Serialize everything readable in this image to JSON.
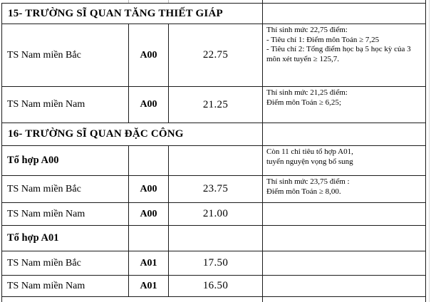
{
  "table": {
    "border_color": "#1c1c1c",
    "rows": [
      {
        "type": "section",
        "label": "15- TRƯỜNG SĨ QUAN TĂNG THIẾT GIÁP",
        "note": ""
      },
      {
        "type": "data",
        "label": "TS Nam miền Bắc",
        "combo": "A00",
        "score": "22.75",
        "note": "Thí sinh mức 22,75 điểm:\n- Tiêu chí 1: Điểm môn Toán ≥ 7,25\n- Tiêu chí 2: Tổng điểm học bạ 5 học kỳ của 3\nmôn xét tuyển ≥ 125,7."
      },
      {
        "type": "data",
        "label": "TS Nam miền Nam",
        "combo": "A00",
        "score": "21.25",
        "note": "Thí sinh mức 21,25 điểm:\nĐiểm môn Toán ≥ 6,25;"
      },
      {
        "type": "section",
        "label": "16- TRƯỜNG SĨ QUAN ĐẶC CÔNG",
        "note": ""
      },
      {
        "type": "group",
        "label": "Tổ hợp A00",
        "combo": "",
        "score": "",
        "note": "Còn 11 chỉ tiêu tổ hợp A01,\ntuyển nguyện vọng bổ sung"
      },
      {
        "type": "data",
        "label": "TS Nam miền Bắc",
        "combo": "A00",
        "score": "23.75",
        "note": "Thí sinh mức 23,75 điểm :\nĐiểm môn Toán ≥ 8,00."
      },
      {
        "type": "data",
        "label": "TS Nam miền Nam",
        "combo": "A00",
        "score": "21.00",
        "note": ""
      },
      {
        "type": "group",
        "label": "Tổ hợp A01",
        "combo": "",
        "score": "",
        "note": ""
      },
      {
        "type": "data",
        "label": "TS Nam miền Bắc",
        "combo": "A01",
        "score": "17.50",
        "note": ""
      },
      {
        "type": "data",
        "label": "TS Nam miền Nam",
        "combo": "A01",
        "score": "16.50",
        "note": ""
      }
    ]
  }
}
